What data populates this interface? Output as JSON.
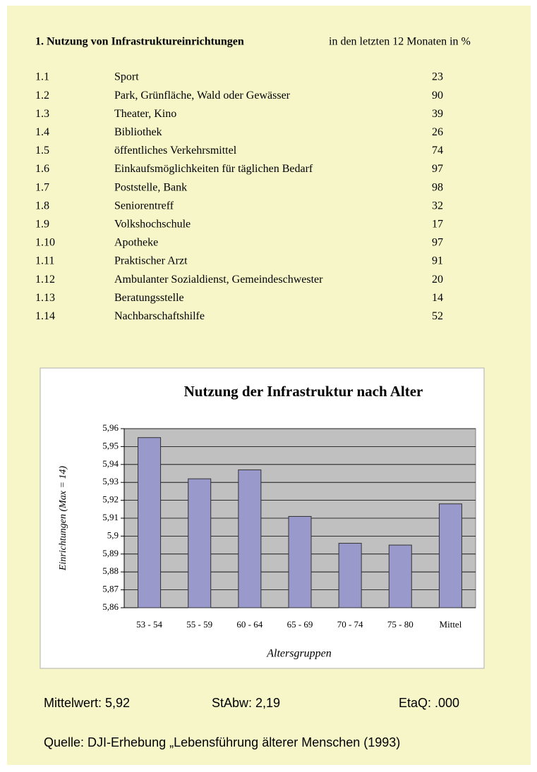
{
  "header": {
    "title": "1. Nutzung von Infrastruktureinrichtungen",
    "subtitle": "in den letzten 12 Monaten in %"
  },
  "table": {
    "rows": [
      [
        "1.1",
        "Sport",
        23
      ],
      [
        "1.2",
        "Park, Grünfläche, Wald oder Gewässer",
        90
      ],
      [
        "1.3",
        "Theater, Kino",
        39
      ],
      [
        "1.4",
        "Bibliothek",
        26
      ],
      [
        "1.5",
        "öffentliches Verkehrsmittel",
        74
      ],
      [
        "1.6",
        "Einkaufsmöglichkeiten für täglichen Bedarf",
        97
      ],
      [
        "1.7",
        "Poststelle, Bank",
        98
      ],
      [
        "1.8",
        "Seniorentreff",
        32
      ],
      [
        "1.9",
        "Volkshochschule",
        17
      ],
      [
        "1.10",
        "Apotheke",
        97
      ],
      [
        "1.11",
        "Praktischer Arzt",
        91
      ],
      [
        "1.12",
        "Ambulanter Sozialdienst, Gemeindeschwester",
        20
      ],
      [
        "1.13",
        "Beratungsstelle",
        14
      ],
      [
        "1.14",
        "Nachbarschaftshilfe",
        52
      ]
    ]
  },
  "chart_data": {
    "type": "bar",
    "title": "Nutzung der Infrastruktur nach Alter",
    "x_label": "Altersgruppen",
    "y_label": "Einrichtungen (Max = 14)",
    "categories": [
      "53 - 54",
      "55 - 59",
      "60 - 64",
      "65 - 69",
      "70 - 74",
      "75 - 80",
      "Mittel"
    ],
    "values": [
      5.955,
      5.932,
      5.937,
      5.911,
      5.896,
      5.895,
      5.918
    ],
    "color": "#9999cc",
    "ylim": [
      5.86,
      5.96
    ],
    "yticks": [
      {
        "value": 5.86,
        "label": "5,86"
      },
      {
        "value": 5.87,
        "label": "5,87"
      },
      {
        "value": 5.88,
        "label": "5,88"
      },
      {
        "value": 5.89,
        "label": "5,89"
      },
      {
        "value": 5.9,
        "label": "5,9"
      },
      {
        "value": 5.91,
        "label": "5,91"
      },
      {
        "value": 5.92,
        "label": "5,92"
      },
      {
        "value": 5.93,
        "label": "5,93"
      },
      {
        "value": 5.94,
        "label": "5,94"
      },
      {
        "value": 5.95,
        "label": "5,95"
      },
      {
        "value": 5.96,
        "label": "5,96"
      }
    ],
    "grid": true
  },
  "footer": {
    "mean": "Mittelwert: 5,92",
    "sd": "StAbw: 2,19",
    "eta": "EtaQ: .000",
    "source": "Quelle: DJI-Erhebung „Lebensführung älterer Menschen (1993)"
  }
}
